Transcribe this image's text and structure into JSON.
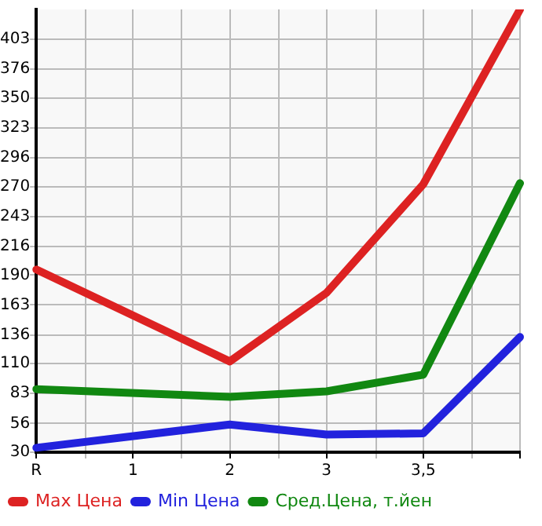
{
  "chart_data": {
    "type": "line",
    "categories": [
      "R",
      "1",
      "2",
      "3",
      "3,5",
      null
    ],
    "series": [
      {
        "name": "Max Цена",
        "color": "#dd2222",
        "values": [
          195,
          null,
          112,
          174,
          272,
          430
        ]
      },
      {
        "name": "Min Цена",
        "color": "#2222dd",
        "values": [
          34,
          null,
          55,
          46,
          47,
          134
        ]
      },
      {
        "name": "Сред.Цена, т.йен",
        "color": "#118811",
        "values": [
          87,
          null,
          80,
          85,
          100,
          273
        ]
      }
    ],
    "ylim": [
      30,
      430
    ],
    "yticks": [
      30,
      56,
      83,
      110,
      136,
      163,
      190,
      216,
      243,
      270,
      296,
      323,
      350,
      376,
      403
    ],
    "grid": true,
    "legend": "bottom",
    "marker": "none",
    "line_style": "solid"
  }
}
